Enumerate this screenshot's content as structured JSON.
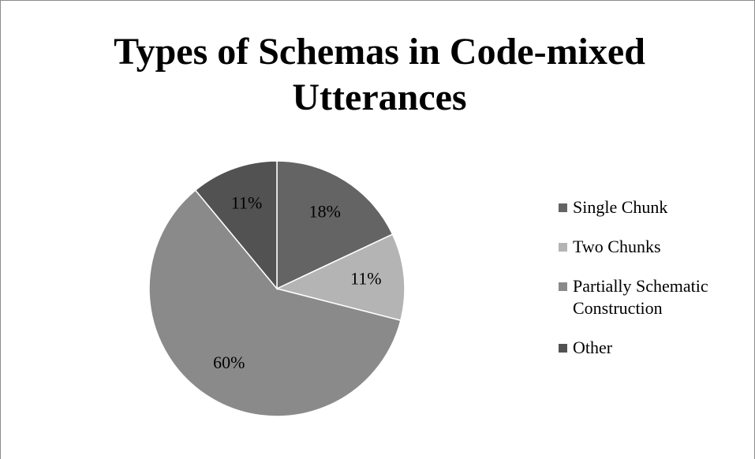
{
  "chart_data": {
    "type": "pie",
    "title": "Types of Schemas in Code-mixed Utterances",
    "categories": [
      "Single Chunk",
      "Two Chunks",
      "Partially Schematic Construction",
      "Other"
    ],
    "values": [
      18,
      11,
      60,
      11
    ],
    "value_labels": [
      "18%",
      "11%",
      "60%",
      "11%"
    ],
    "colors": [
      "#646464",
      "#b4b4b4",
      "#8a8a8a",
      "#525252"
    ],
    "legend": "right"
  }
}
